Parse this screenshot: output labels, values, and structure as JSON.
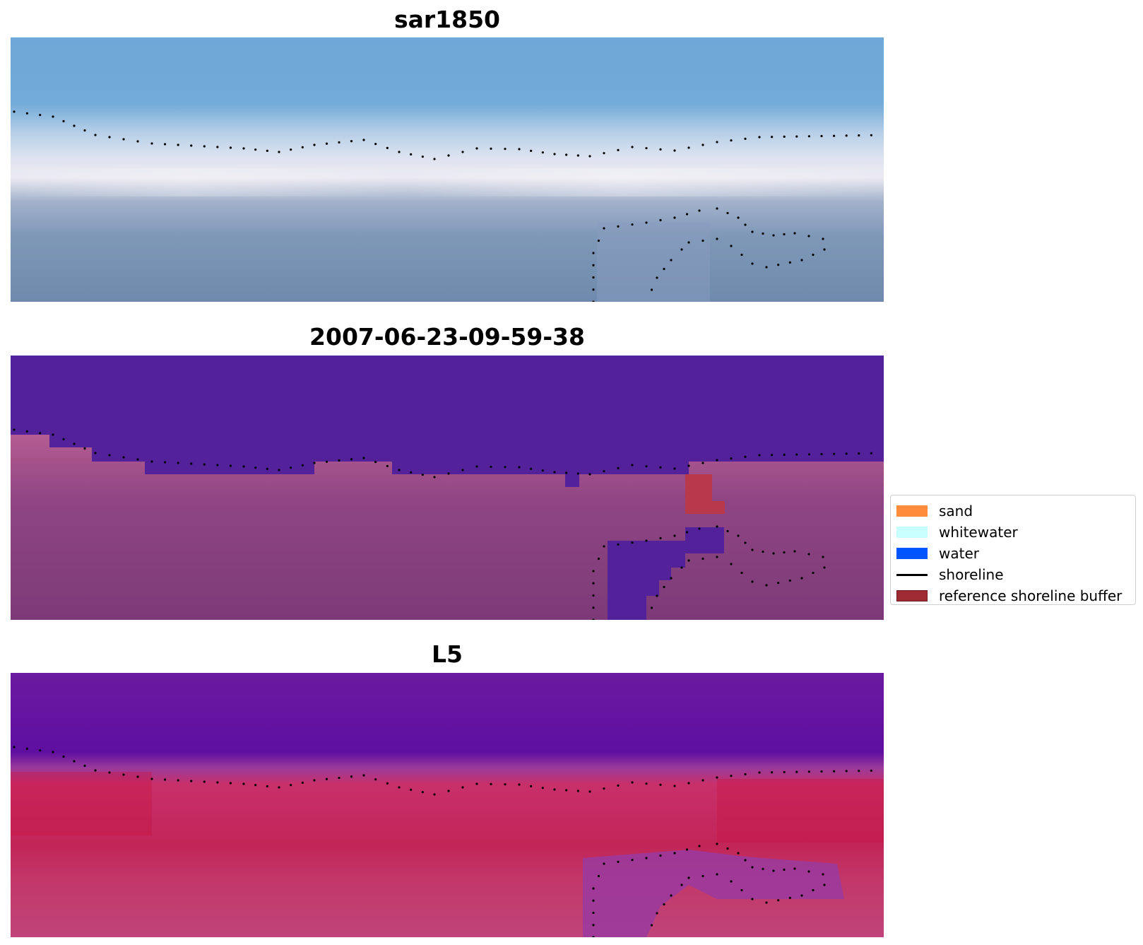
{
  "panels": [
    {
      "title": "sar1850"
    },
    {
      "title": "2007-06-23-09-59-38"
    },
    {
      "title": "L5"
    }
  ],
  "legend": {
    "items": [
      {
        "label": "sand",
        "color": "#ff8c3a",
        "kind": "patch"
      },
      {
        "label": "whitewater",
        "color": "#c8ffff",
        "kind": "patch"
      },
      {
        "label": "water",
        "color": "#0055ff",
        "kind": "patch"
      },
      {
        "label": "shoreline",
        "color": "#000000",
        "kind": "line"
      },
      {
        "label": "reference shoreline buffer",
        "color": "#9e2b34",
        "kind": "patch"
      }
    ]
  },
  "colors": {
    "rgb_sky": "#6fa6d8",
    "rgb_surf": "#e8e8f0",
    "rgb_sand": "#7a93b3",
    "class_water": "#53229a",
    "class_sand": "#b0588f",
    "class_dark": "#7d3a78",
    "class_buffer": "#b83a4a",
    "index_water": "#5e0fa0",
    "index_sand": "#c8245a",
    "index_mid": "#c5508a"
  }
}
